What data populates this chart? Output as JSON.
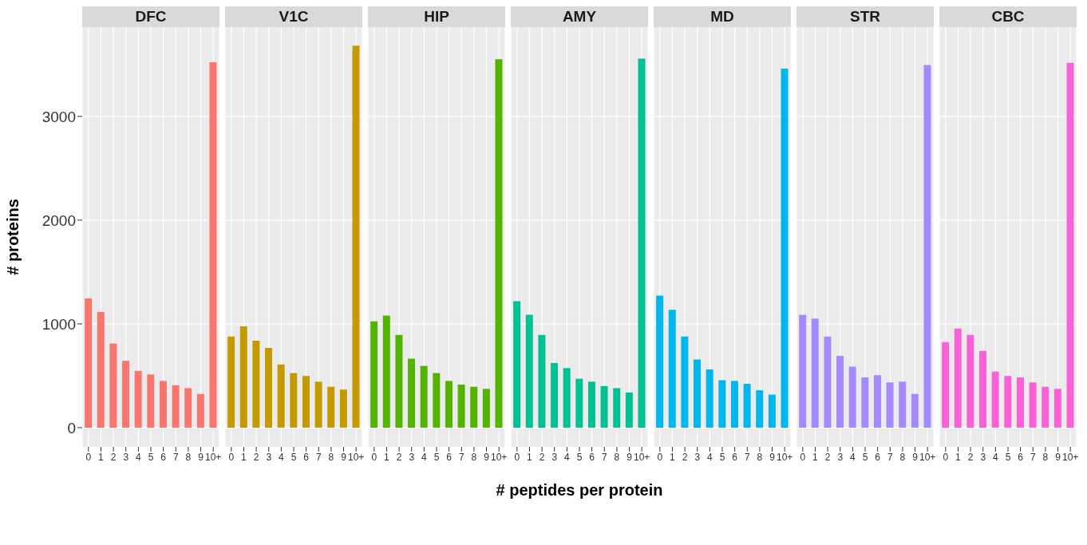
{
  "chart_data": [
    {
      "type": "bar",
      "title": "DFC",
      "ylabel": "# proteins",
      "categories": [
        "0",
        "1",
        "2",
        "3",
        "4",
        "5",
        "6",
        "7",
        "8",
        "9",
        "10+"
      ],
      "values": [
        1246,
        1114,
        810,
        644,
        547,
        512,
        450,
        408,
        381,
        325,
        3522
      ],
      "color": "#f8766d",
      "ylim": [
        -185,
        3860
      ],
      "yticks": [
        0,
        1000,
        2000,
        3000
      ],
      "grid": true
    },
    {
      "type": "bar",
      "title": "V1C",
      "categories": [
        "0",
        "1",
        "2",
        "3",
        "4",
        "5",
        "6",
        "7",
        "8",
        "9",
        "10+"
      ],
      "values": [
        879,
        976,
        837,
        768,
        609,
        526,
        498,
        443,
        394,
        367,
        3682
      ],
      "color": "#c49a00",
      "ylim": [
        -185,
        3860
      ],
      "yticks": [
        0,
        1000,
        2000,
        3000
      ],
      "grid": true,
      "tick_labels": "x"
    },
    {
      "type": "bar",
      "title": "HIP",
      "categories": [
        "0",
        "1",
        "2",
        "3",
        "4",
        "5",
        "6",
        "7",
        "8",
        "9",
        "10+"
      ],
      "values": [
        1024,
        1080,
        893,
        664,
        595,
        526,
        450,
        415,
        394,
        374,
        3550
      ],
      "color": "#53b400",
      "ylim": [
        -185,
        3860
      ],
      "yticks": [
        0,
        1000,
        2000,
        3000
      ],
      "grid": true,
      "tick_labels": "x"
    },
    {
      "type": "bar",
      "title": "AMY",
      "xlabel": "# peptides per protein",
      "categories": [
        "0",
        "1",
        "2",
        "3",
        "4",
        "5",
        "6",
        "7",
        "8",
        "9",
        "10+"
      ],
      "values": [
        1218,
        1087,
        893,
        623,
        574,
        471,
        443,
        401,
        381,
        339,
        3557
      ],
      "color": "#00c094",
      "ylim": [
        -185,
        3860
      ],
      "yticks": [
        0,
        1000,
        2000,
        3000
      ],
      "grid": true,
      "tick_labels": "x"
    },
    {
      "type": "bar",
      "title": "MD",
      "categories": [
        "0",
        "1",
        "2",
        "3",
        "4",
        "5",
        "6",
        "7",
        "8",
        "9",
        "10+"
      ],
      "values": [
        1273,
        1135,
        879,
        657,
        561,
        457,
        450,
        422,
        360,
        318,
        3460
      ],
      "color": "#00b6eb",
      "ylim": [
        -185,
        3860
      ],
      "yticks": [
        0,
        1000,
        2000,
        3000
      ],
      "grid": true,
      "tick_labels": "x"
    },
    {
      "type": "bar",
      "title": "STR",
      "categories": [
        "0",
        "1",
        "2",
        "3",
        "4",
        "5",
        "6",
        "7",
        "8",
        "9",
        "10+"
      ],
      "values": [
        1087,
        1052,
        879,
        692,
        588,
        484,
        505,
        436,
        443,
        325,
        3495
      ],
      "color": "#a58aff",
      "ylim": [
        -185,
        3860
      ],
      "yticks": [
        0,
        1000,
        2000,
        3000
      ],
      "grid": true,
      "tick_labels": "x"
    },
    {
      "type": "bar",
      "title": "CBC",
      "categories": [
        "0",
        "1",
        "2",
        "3",
        "4",
        "5",
        "6",
        "7",
        "8",
        "9",
        "10+"
      ],
      "values": [
        824,
        955,
        893,
        740,
        540,
        498,
        484,
        436,
        394,
        374,
        3516
      ],
      "color": "#fb61d7",
      "ylim": [
        -185,
        3860
      ],
      "yticks": [
        0,
        1000,
        2000,
        3000
      ],
      "grid": true,
      "tick_labels": "x"
    }
  ]
}
